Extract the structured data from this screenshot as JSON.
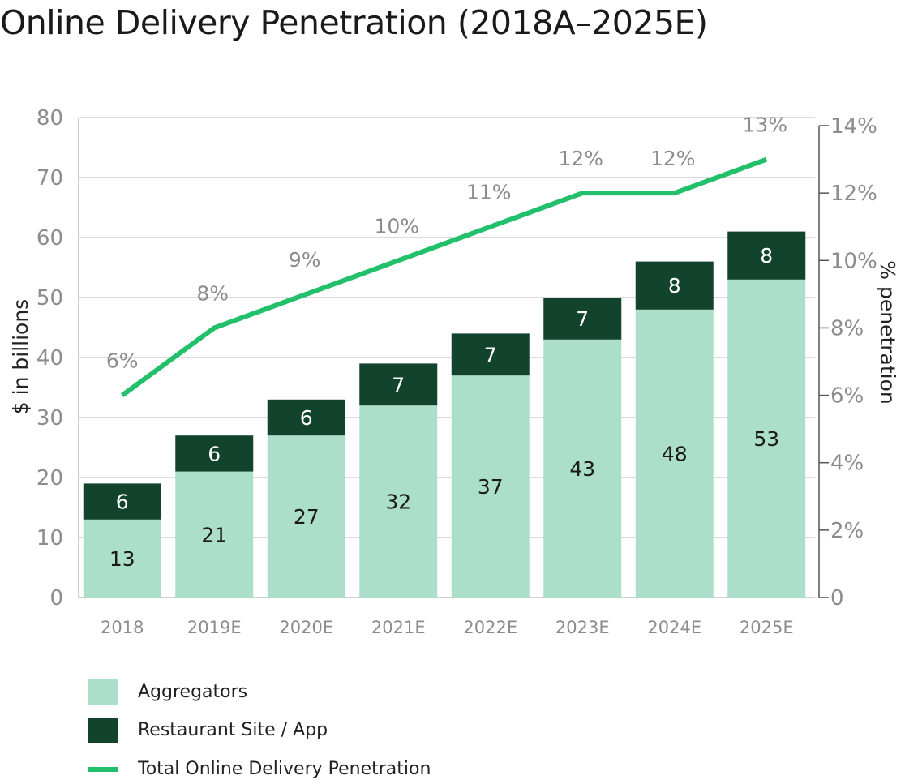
{
  "chart_data": {
    "type": "bar",
    "stacked": true,
    "title": "Online Delivery Penetration (2018A–2025E)",
    "categories": [
      "2018",
      "2019E",
      "2020E",
      "2021E",
      "2022E",
      "2023E",
      "2024E",
      "2025E"
    ],
    "series": [
      {
        "name": "Aggregators",
        "values": [
          13,
          21,
          27,
          32,
          37,
          43,
          48,
          53
        ],
        "color": "#acdfca",
        "axis": "left"
      },
      {
        "name": "Restaurant Site / App",
        "values": [
          6,
          6,
          6,
          7,
          7,
          7,
          8,
          8
        ],
        "color": "#12432d",
        "axis": "left"
      },
      {
        "name": "Total Online Delivery Penetration",
        "type": "line",
        "values": [
          6,
          8,
          9,
          10,
          11,
          12,
          12,
          13
        ],
        "labels": [
          "6%",
          "8%",
          "9%",
          "10%",
          "11%",
          "12%",
          "12%",
          "13%"
        ],
        "color": "#22c06a",
        "axis": "right"
      }
    ],
    "ylabel": "$ in billions",
    "ylim": [
      0,
      80
    ],
    "yticks": [
      "0",
      "10",
      "20",
      "30",
      "40",
      "50",
      "60",
      "70",
      "80"
    ],
    "y2label": "% penetration",
    "y2lim": [
      0,
      14
    ],
    "y2ticks": [
      "0",
      "2%",
      "4%",
      "6%",
      "8%",
      "10%",
      "12%",
      "14%"
    ],
    "grid": true,
    "legend_position": "bottom-left"
  }
}
